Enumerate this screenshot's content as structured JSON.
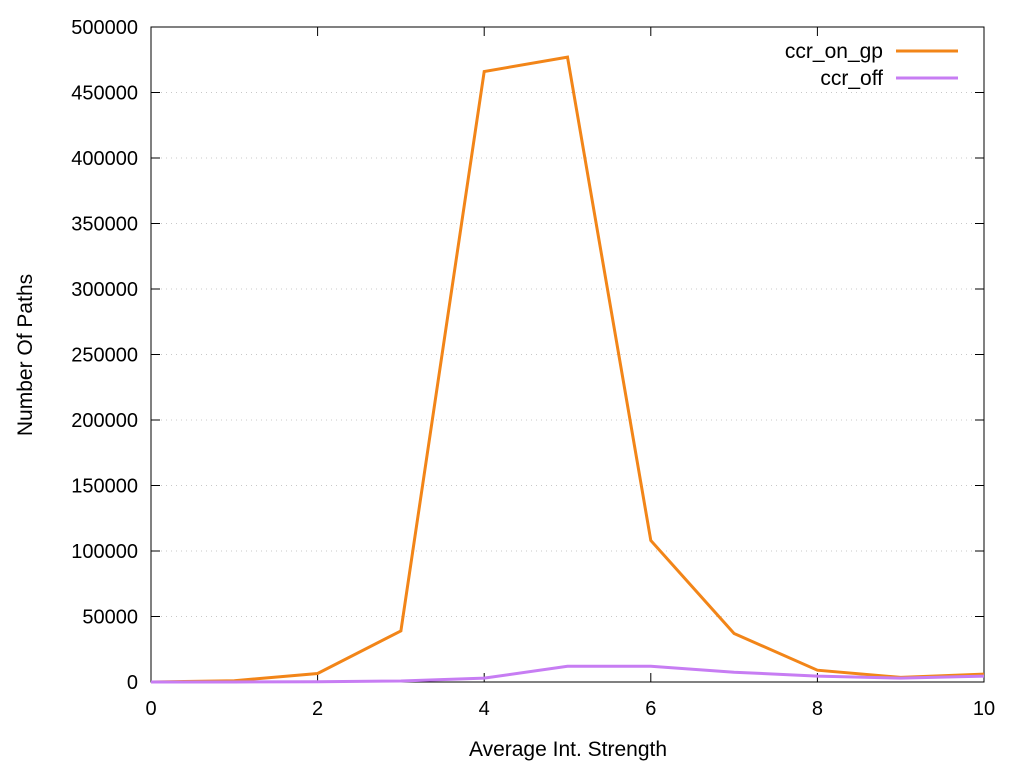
{
  "chart_data": {
    "type": "line",
    "title": "",
    "xlabel": "Average Int. Strength",
    "ylabel": "Number Of Paths",
    "xlim": [
      0,
      10
    ],
    "ylim": [
      0,
      500000
    ],
    "xticks": [
      0,
      2,
      4,
      6,
      8,
      10
    ],
    "yticks": [
      0,
      50000,
      100000,
      150000,
      200000,
      250000,
      300000,
      350000,
      400000,
      450000,
      500000
    ],
    "grid": true,
    "legend_position": "top-right",
    "x": [
      0,
      1,
      2,
      3,
      4,
      5,
      6,
      7,
      8,
      9,
      10
    ],
    "series": [
      {
        "name": "ccr_on_gp",
        "color": "#f28518",
        "values": [
          0,
          1000,
          6500,
          39000,
          466000,
          477000,
          108000,
          37000,
          9000,
          3500,
          6000
        ]
      },
      {
        "name": "ccr_off",
        "color": "#c77df3",
        "values": [
          0,
          0,
          200,
          800,
          3000,
          12000,
          12000,
          7500,
          4500,
          3000,
          4500
        ]
      }
    ]
  }
}
